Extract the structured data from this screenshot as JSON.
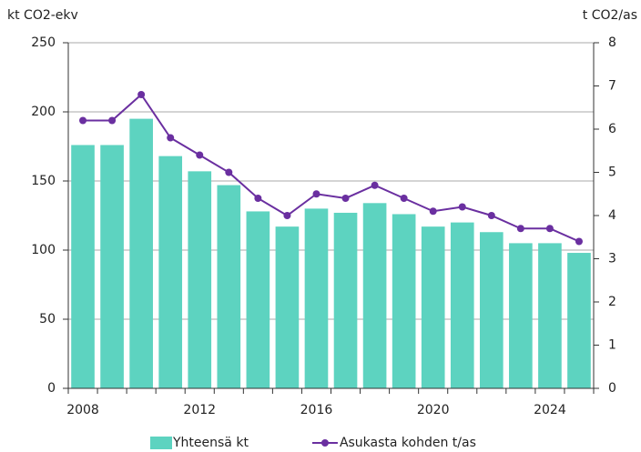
{
  "chart_data": {
    "type": "bar-line",
    "y_label": "kt CO2-ekv",
    "y2_label": "t CO2/as",
    "categories": [
      2008,
      null,
      null,
      null,
      2012,
      null,
      null,
      null,
      2016,
      null,
      null,
      null,
      2020,
      null,
      null,
      null,
      2024,
      null
    ],
    "series": [
      {
        "name": "Yhteensä kt",
        "type": "bar",
        "color": "#5dd3c0",
        "axis": "y",
        "values": [
          176,
          176,
          195,
          168,
          157,
          147,
          128,
          117,
          130,
          127,
          134,
          126,
          117,
          120,
          113,
          105,
          105,
          98
        ]
      },
      {
        "name": "Asukasta kohden t/as",
        "type": "line",
        "color": "#6a2fa0",
        "axis": "y2",
        "values": [
          6.2,
          6.2,
          6.8,
          5.8,
          5.4,
          5.0,
          4.4,
          4.0,
          4.5,
          4.4,
          4.7,
          4.4,
          4.1,
          4.2,
          4.0,
          3.7,
          3.7,
          3.4
        ]
      }
    ],
    "ylim": [
      0,
      250
    ],
    "yticks": [
      0,
      50,
      100,
      150,
      200,
      250
    ],
    "y2lim": [
      0,
      8
    ],
    "y2ticks": [
      0,
      1,
      2,
      3,
      4,
      5,
      6,
      7,
      8
    ],
    "grid": true,
    "legend": "bottom"
  }
}
